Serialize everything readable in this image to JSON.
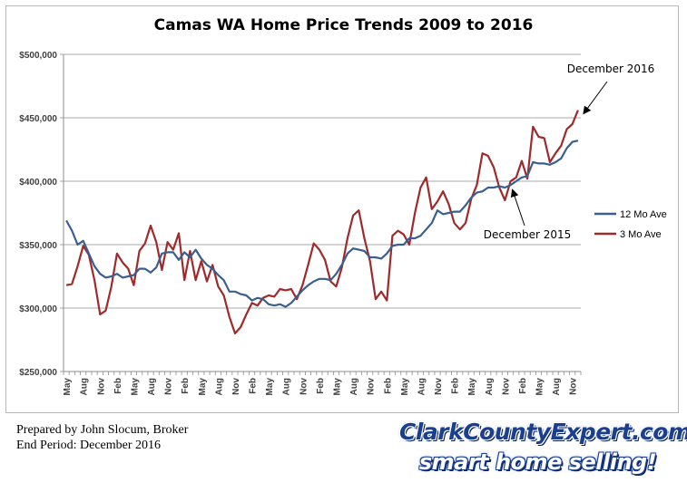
{
  "chart_data": {
    "type": "line",
    "title": "Camas WA Home Price Trends 2009 to 2016",
    "ylim": [
      250000,
      500000
    ],
    "y_ticks": [
      "$250,000",
      "$300,000",
      "$350,000",
      "$400,000",
      "$450,000",
      "$500,000"
    ],
    "y_tick_values": [
      250000,
      300000,
      350000,
      400000,
      450000,
      500000
    ],
    "x_tick_labels": [
      "May",
      "Aug",
      "Nov",
      "Feb",
      "May",
      "Aug",
      "Nov",
      "Feb",
      "May",
      "Aug",
      "Nov",
      "Feb",
      "May",
      "Aug",
      "Nov",
      "Feb",
      "May",
      "Aug",
      "Nov",
      "Feb",
      "May",
      "Aug",
      "Nov",
      "Feb",
      "May",
      "Aug",
      "Nov",
      "Feb",
      "May",
      "Aug",
      "Nov"
    ],
    "grid": "horizontal",
    "legend_position": "right",
    "series": [
      {
        "name": "12 Mo Ave",
        "color": "#3a5f8f",
        "values": [
          369000,
          361000,
          350000,
          353000,
          343000,
          333000,
          327000,
          324000,
          325000,
          327000,
          324000,
          325000,
          326000,
          331000,
          331000,
          328000,
          332000,
          343000,
          344000,
          344000,
          338000,
          344000,
          340000,
          346000,
          339000,
          334000,
          331000,
          326000,
          322000,
          313000,
          313000,
          311000,
          310000,
          306000,
          308000,
          307000,
          303000,
          302000,
          303000,
          301000,
          304000,
          309000,
          314000,
          318000,
          321000,
          323000,
          323000,
          322000,
          327000,
          334000,
          343000,
          347000,
          346000,
          345000,
          340000,
          340000,
          339000,
          343000,
          349000,
          350000,
          350000,
          355000,
          355000,
          357000,
          362000,
          367000,
          377000,
          374000,
          375000,
          376000,
          376000,
          381000,
          387000,
          391000,
          392000,
          395000,
          395000,
          396000,
          395000,
          397000,
          400000,
          403000,
          404000,
          415000,
          414000,
          414000,
          413000,
          415000,
          418000,
          426000,
          431000,
          432000
        ]
      },
      {
        "name": "3 Mo Ave",
        "color": "#9e2a2b",
        "values": [
          318000,
          319000,
          333000,
          349000,
          342000,
          322000,
          295000,
          298000,
          317000,
          343000,
          336000,
          331000,
          318000,
          345000,
          351000,
          365000,
          352000,
          330000,
          352000,
          346000,
          359000,
          322000,
          345000,
          322000,
          337000,
          321000,
          334000,
          317000,
          310000,
          293000,
          280000,
          285000,
          295000,
          304000,
          302000,
          308000,
          310000,
          309000,
          315000,
          314000,
          315000,
          307000,
          318000,
          334000,
          351000,
          346000,
          338000,
          321000,
          317000,
          332000,
          355000,
          373000,
          377000,
          355000,
          337000,
          307000,
          313000,
          306000,
          357000,
          361000,
          358000,
          350000,
          375000,
          395000,
          403000,
          378000,
          384000,
          392000,
          382000,
          367000,
          362000,
          367000,
          386000,
          397000,
          422000,
          420000,
          411000,
          395000,
          385000,
          400000,
          403000,
          416000,
          402000,
          443000,
          435000,
          434000,
          415000,
          422000,
          428000,
          441000,
          445000,
          456000
        ]
      }
    ],
    "annotations": [
      {
        "text": "December 2016"
      },
      {
        "text": "December 2015"
      }
    ]
  },
  "footer": {
    "line1": "Prepared by John Slocum, Broker",
    "line2": "End Period: December 2016"
  },
  "logo": {
    "line1": "ClarkCountyExpert.com",
    "line2": "smart home selling!"
  }
}
